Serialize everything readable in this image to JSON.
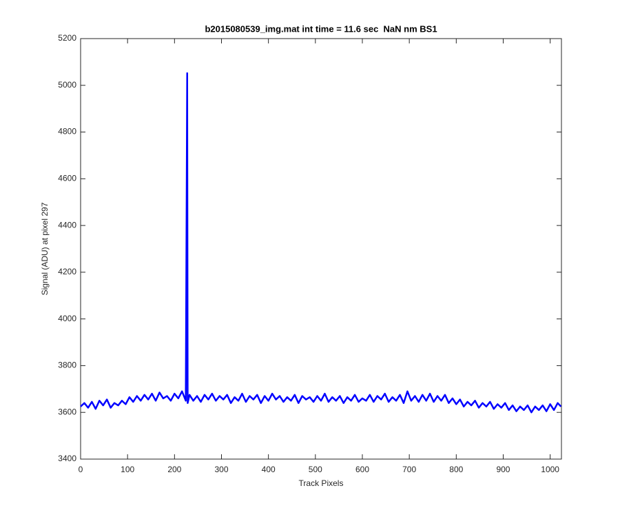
{
  "chart_data": {
    "type": "line",
    "title": "b2015080539_img.mat int time = 11.6 sec  NaN nm BS1",
    "x_label": "Track Pixels",
    "y_label": "Signal (ADU) at pixel 297",
    "color": "#0000ff",
    "grid": false,
    "xlim": [
      0,
      1024
    ],
    "ylim": [
      3400,
      5200
    ],
    "xticks": [
      0,
      100,
      200,
      300,
      400,
      500,
      600,
      700,
      800,
      900,
      1000
    ],
    "yticks": [
      3400,
      3600,
      3800,
      4000,
      4200,
      4400,
      4600,
      4800,
      5000,
      5200
    ],
    "x": [
      0,
      8,
      16,
      24,
      32,
      40,
      48,
      56,
      64,
      72,
      80,
      88,
      96,
      104,
      112,
      120,
      128,
      136,
      144,
      152,
      160,
      168,
      176,
      184,
      192,
      200,
      208,
      216,
      224,
      227,
      228,
      232,
      240,
      248,
      256,
      264,
      272,
      280,
      288,
      296,
      304,
      312,
      320,
      328,
      336,
      344,
      352,
      360,
      368,
      376,
      384,
      392,
      400,
      408,
      416,
      424,
      432,
      440,
      448,
      456,
      464,
      472,
      480,
      488,
      496,
      504,
      512,
      520,
      528,
      536,
      544,
      552,
      560,
      568,
      576,
      584,
      592,
      600,
      608,
      616,
      624,
      632,
      640,
      648,
      656,
      664,
      672,
      680,
      688,
      696,
      704,
      712,
      720,
      728,
      736,
      744,
      752,
      760,
      768,
      776,
      784,
      792,
      800,
      808,
      816,
      824,
      832,
      840,
      848,
      856,
      864,
      872,
      880,
      888,
      896,
      904,
      912,
      920,
      928,
      936,
      944,
      952,
      960,
      968,
      976,
      984,
      992,
      1000,
      1008,
      1016,
      1023
    ],
    "values": [
      3625,
      3640,
      3620,
      3645,
      3615,
      3650,
      3630,
      3655,
      3620,
      3640,
      3630,
      3650,
      3635,
      3665,
      3645,
      3670,
      3650,
      3675,
      3655,
      3680,
      3650,
      3685,
      3660,
      3670,
      3650,
      3680,
      3660,
      3690,
      3650,
      5052,
      3640,
      3675,
      3650,
      3670,
      3645,
      3675,
      3655,
      3680,
      3650,
      3670,
      3655,
      3675,
      3640,
      3665,
      3650,
      3680,
      3645,
      3670,
      3655,
      3675,
      3640,
      3670,
      3650,
      3680,
      3655,
      3670,
      3645,
      3665,
      3650,
      3675,
      3640,
      3670,
      3655,
      3665,
      3645,
      3670,
      3650,
      3680,
      3645,
      3665,
      3650,
      3670,
      3640,
      3665,
      3650,
      3675,
      3645,
      3660,
      3650,
      3675,
      3645,
      3670,
      3655,
      3680,
      3645,
      3665,
      3650,
      3675,
      3640,
      3690,
      3650,
      3670,
      3645,
      3675,
      3650,
      3680,
      3645,
      3670,
      3650,
      3675,
      3640,
      3660,
      3635,
      3655,
      3625,
      3645,
      3630,
      3650,
      3620,
      3640,
      3625,
      3645,
      3615,
      3635,
      3620,
      3640,
      3610,
      3630,
      3605,
      3625,
      3610,
      3630,
      3600,
      3625,
      3610,
      3630,
      3605,
      3635,
      3610,
      3640,
      3625
    ]
  }
}
